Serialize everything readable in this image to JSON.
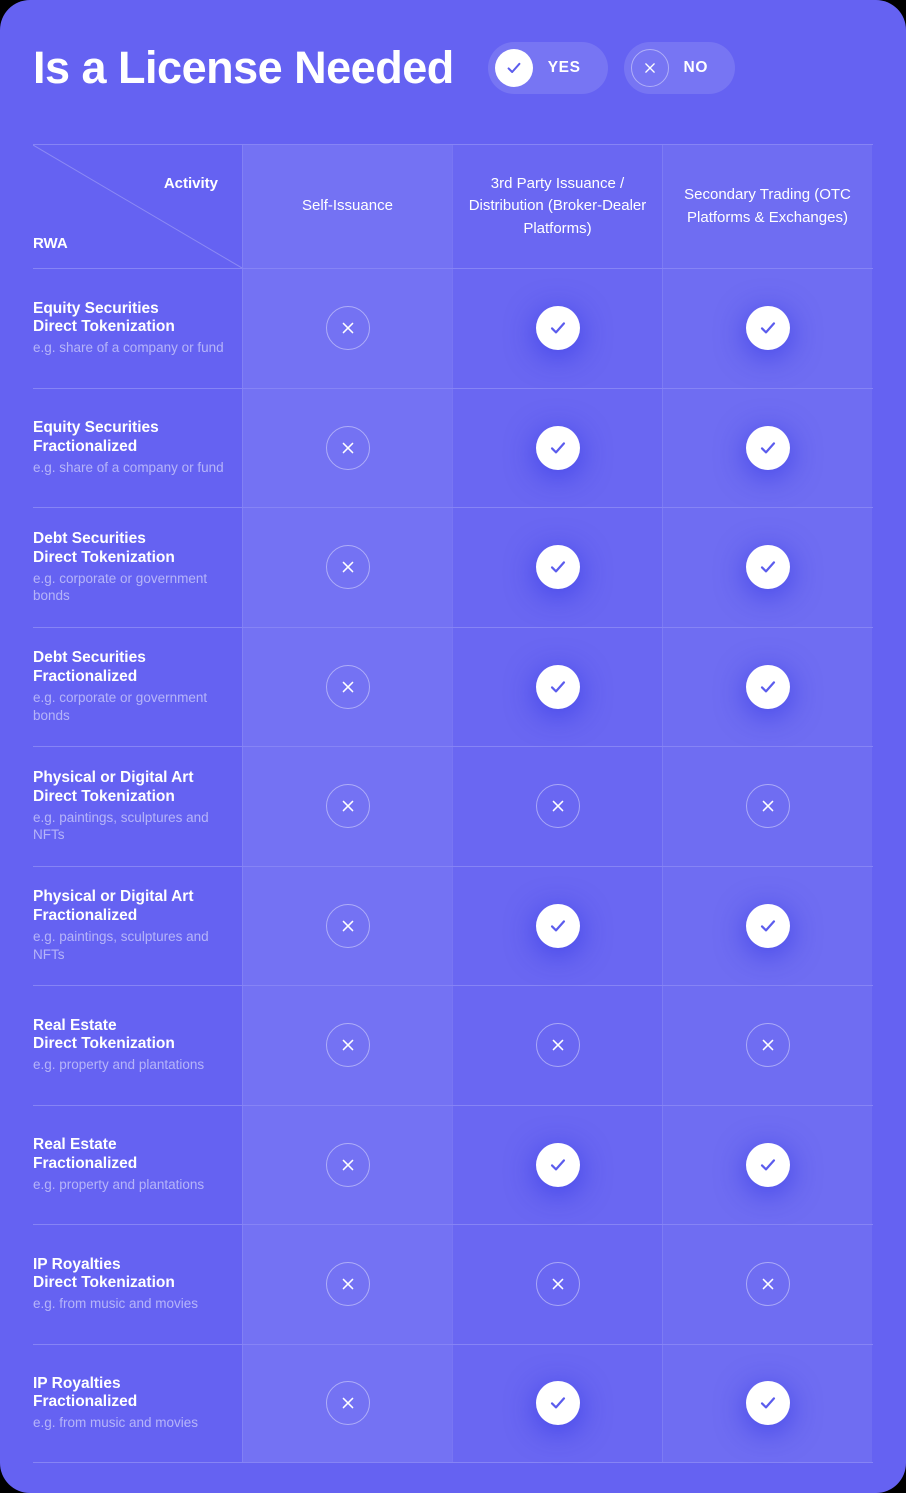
{
  "header": {
    "title": "Is a License Needed",
    "legend": {
      "yes_label": "YES",
      "no_label": "NO"
    }
  },
  "table": {
    "corner": {
      "top_label": "Activity",
      "bottom_label": "RWA"
    },
    "columns": [
      "Self-Issuance",
      "3rd Party Issuance / Distribution (Broker-Dealer Platforms)",
      "Secondary Trading (OTC Platforms & Exchanges)"
    ],
    "rows": [
      {
        "category": "Equity Securities",
        "method": "Direct Tokenization",
        "example": "e.g. share of a company or fund",
        "values": [
          "no",
          "yes",
          "yes"
        ]
      },
      {
        "category": "Equity Securities",
        "method": "Fractionalized",
        "example": "e.g. share of a company or fund",
        "values": [
          "no",
          "yes",
          "yes"
        ]
      },
      {
        "category": "Debt Securities",
        "method": "Direct Tokenization",
        "example": "e.g. corporate or government bonds",
        "values": [
          "no",
          "yes",
          "yes"
        ]
      },
      {
        "category": "Debt Securities",
        "method": "Fractionalized",
        "example": "e.g. corporate or government bonds",
        "values": [
          "no",
          "yes",
          "yes"
        ]
      },
      {
        "category": "Physical or Digital Art",
        "method": "Direct Tokenization",
        "example": "e.g. paintings, sculptures and NFTs",
        "values": [
          "no",
          "no",
          "no"
        ]
      },
      {
        "category": "Physical or Digital Art",
        "method": "Fractionalized",
        "example": "e.g. paintings, sculptures and NFTs",
        "values": [
          "no",
          "yes",
          "yes"
        ]
      },
      {
        "category": "Real Estate",
        "method": "Direct Tokenization",
        "example": "e.g. property and plantations",
        "values": [
          "no",
          "no",
          "no"
        ]
      },
      {
        "category": "Real Estate",
        "method": "Fractionalized",
        "example": "e.g. property and plantations",
        "values": [
          "no",
          "yes",
          "yes"
        ]
      },
      {
        "category": "IP Royalties",
        "method": "Direct Tokenization",
        "example": "e.g. from music and movies",
        "values": [
          "no",
          "no",
          "no"
        ]
      },
      {
        "category": "IP Royalties",
        "method": "Fractionalized",
        "example": "e.g. from music and movies",
        "values": [
          "no",
          "yes",
          "yes"
        ]
      }
    ]
  },
  "chart_data": {
    "type": "table",
    "title": "Is a License Needed",
    "row_axis_label": "RWA",
    "column_axis_label": "Activity",
    "legend": {
      "check": "YES",
      "cross": "NO"
    },
    "columns": [
      "Self-Issuance",
      "3rd Party Issuance / Distribution (Broker-Dealer Platforms)",
      "Secondary Trading (OTC Platforms & Exchanges)"
    ],
    "rows": [
      "Equity Securities — Direct Tokenization (e.g. share of a company or fund)",
      "Equity Securities — Fractionalized (e.g. share of a company or fund)",
      "Debt Securities — Direct Tokenization (e.g. corporate or government bonds)",
      "Debt Securities — Fractionalized (e.g. corporate or government bonds)",
      "Physical or Digital Art — Direct Tokenization (e.g. paintings, sculptures and NFTs)",
      "Physical or Digital Art — Fractionalized (e.g. paintings, sculptures and NFTs)",
      "Real Estate — Direct Tokenization (e.g. property and plantations)",
      "Real Estate — Fractionalized (e.g. property and plantations)",
      "IP Royalties — Direct Tokenization (e.g. from music and movies)",
      "IP Royalties — Fractionalized (e.g. from music and movies)"
    ],
    "values": [
      [
        "no",
        "yes",
        "yes"
      ],
      [
        "no",
        "yes",
        "yes"
      ],
      [
        "no",
        "yes",
        "yes"
      ],
      [
        "no",
        "yes",
        "yes"
      ],
      [
        "no",
        "no",
        "no"
      ],
      [
        "no",
        "yes",
        "yes"
      ],
      [
        "no",
        "no",
        "no"
      ],
      [
        "no",
        "yes",
        "yes"
      ],
      [
        "no",
        "no",
        "no"
      ],
      [
        "no",
        "yes",
        "yes"
      ]
    ]
  },
  "icons": {
    "yes": "check-icon",
    "no": "cross-icon"
  },
  "colors": {
    "base_bg": "#6562f2",
    "tint_light": "rgba(255,255,255,0.10)",
    "tint_mid": "rgba(255,255,255,0.035)",
    "tint_soft": "rgba(255,255,255,0.07)",
    "separator": "rgba(255,255,255,0.22)",
    "cell_divider": "rgba(255,255,255,0.10)",
    "accent_check": "#5b5ced",
    "muted_text": "rgba(255,255,255,0.52)",
    "pill_bg": "rgba(255,255,255,0.12)",
    "circle_border": "rgba(255,255,255,0.42)",
    "page_frame": "#000000"
  }
}
